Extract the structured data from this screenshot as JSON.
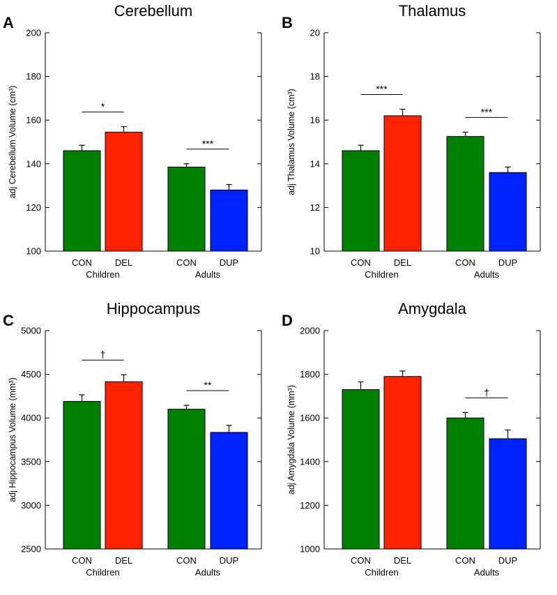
{
  "chart_data": [
    {
      "type": "bar",
      "panel_letter": "A",
      "title": "Cerebellum",
      "ylabel": "adj Cerebellum Volume (cm³)",
      "ylim": [
        100,
        200
      ],
      "yticks": [
        100,
        120,
        140,
        160,
        180,
        200
      ],
      "groups": [
        {
          "label": "Children",
          "bars": [
            {
              "label": "CON",
              "value": 146,
              "error": 2.5,
              "color": "#008000"
            },
            {
              "label": "DEL",
              "value": 154.5,
              "error": 2.5,
              "color": "#ff2200"
            }
          ],
          "sig": "*"
        },
        {
          "label": "Adults",
          "bars": [
            {
              "label": "CON",
              "value": 138.5,
              "error": 1.5,
              "color": "#008000"
            },
            {
              "label": "DUP",
              "value": 128,
              "error": 2.5,
              "color": "#0022ff"
            }
          ],
          "sig": "***"
        }
      ]
    },
    {
      "type": "bar",
      "panel_letter": "B",
      "title": "Thalamus",
      "ylabel": "adj Thalamus Volume (cm³)",
      "ylim": [
        10,
        20
      ],
      "yticks": [
        10,
        12,
        14,
        16,
        18,
        20
      ],
      "groups": [
        {
          "label": "Children",
          "bars": [
            {
              "label": "CON",
              "value": 14.6,
              "error": 0.25,
              "color": "#008000"
            },
            {
              "label": "DEL",
              "value": 16.2,
              "error": 0.3,
              "color": "#ff2200"
            }
          ],
          "sig": "***"
        },
        {
          "label": "Adults",
          "bars": [
            {
              "label": "CON",
              "value": 15.25,
              "error": 0.2,
              "color": "#008000"
            },
            {
              "label": "DUP",
              "value": 13.6,
              "error": 0.25,
              "color": "#0022ff"
            }
          ],
          "sig": "***"
        }
      ]
    },
    {
      "type": "bar",
      "panel_letter": "C",
      "title": "Hippocampus",
      "ylabel": "adj Hippocampus Volume (mm³)",
      "ylim": [
        2500,
        5000
      ],
      "yticks": [
        2500,
        3000,
        3500,
        4000,
        4500,
        5000
      ],
      "groups": [
        {
          "label": "Children",
          "bars": [
            {
              "label": "CON",
              "value": 4190,
              "error": 75,
              "color": "#008000"
            },
            {
              "label": "DEL",
              "value": 4415,
              "error": 80,
              "color": "#ff2200"
            }
          ],
          "sig": "†"
        },
        {
          "label": "Adults",
          "bars": [
            {
              "label": "CON",
              "value": 4100,
              "error": 45,
              "color": "#008000"
            },
            {
              "label": "DUP",
              "value": 3835,
              "error": 80,
              "color": "#0022ff"
            }
          ],
          "sig": "**"
        }
      ]
    },
    {
      "type": "bar",
      "panel_letter": "D",
      "title": "Amygdala",
      "ylabel": "adj Amygdala Volume (mm³)",
      "ylim": [
        1000,
        2000
      ],
      "yticks": [
        1000,
        1200,
        1400,
        1600,
        1800,
        2000
      ],
      "groups": [
        {
          "label": "Children",
          "bars": [
            {
              "label": "CON",
              "value": 1730,
              "error": 35,
              "color": "#008000"
            },
            {
              "label": "DEL",
              "value": 1790,
              "error": 25,
              "color": "#ff2200"
            }
          ],
          "sig": ""
        },
        {
          "label": "Adults",
          "bars": [
            {
              "label": "CON",
              "value": 1600,
              "error": 25,
              "color": "#008000"
            },
            {
              "label": "DUP",
              "value": 1505,
              "error": 40,
              "color": "#0022ff"
            }
          ],
          "sig": "†"
        }
      ]
    }
  ]
}
